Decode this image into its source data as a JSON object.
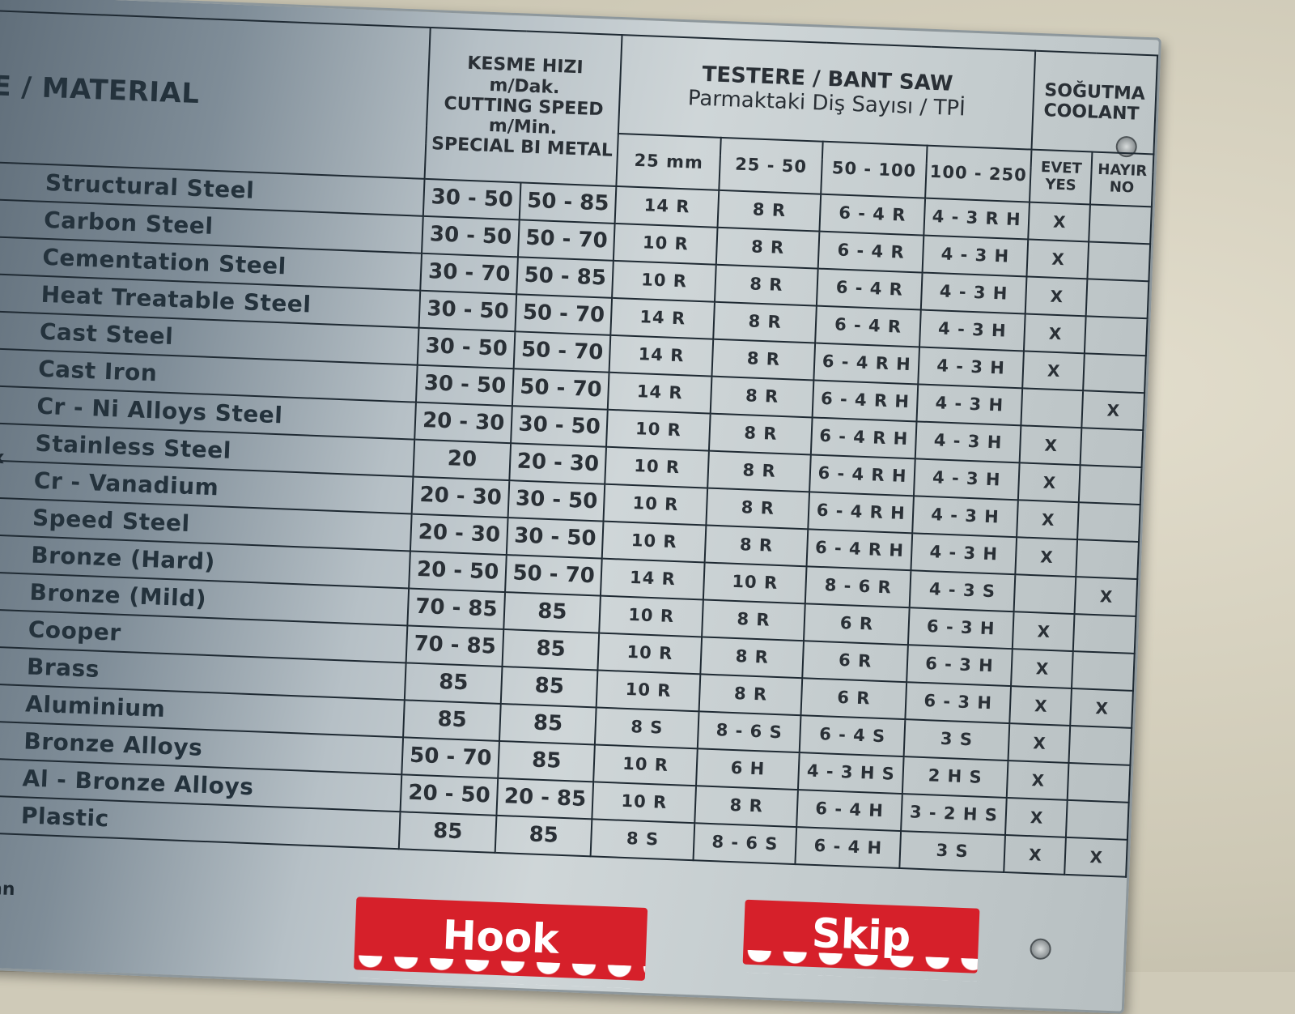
{
  "header": {
    "material": "E / MATERIAL",
    "speed": [
      "KESME HIZI",
      "m/Dak.",
      "CUTTING SPEED",
      "m/Min.",
      "SPECIAL BI METAL"
    ],
    "saw_title": "TESTERE / BANT SAW",
    "saw_subtitle": "Parmaktaki Diş Sayısı / TPİ",
    "tpi_columns": [
      "25 mm",
      "25 - 50",
      "50 - 100",
      "100 - 250"
    ],
    "coolant_title": [
      "SOĞUTMA",
      "COOLANT"
    ],
    "coolant_yes": [
      "EVET",
      "YES"
    ],
    "coolant_no": [
      "HAYIR",
      "NO"
    ]
  },
  "rows": [
    {
      "material": "Structural Steel",
      "speed": [
        "30 - 50",
        "50 - 85"
      ],
      "tpi": [
        "14 R",
        "8 R",
        "6 - 4 R",
        "4 - 3 R H"
      ],
      "yes": "X",
      "no": ""
    },
    {
      "material": "Carbon Steel",
      "speed": [
        "30 - 50",
        "50 - 70"
      ],
      "tpi": [
        "10 R",
        "8 R",
        "6 - 4 R",
        "4 - 3 H"
      ],
      "yes": "X",
      "no": ""
    },
    {
      "material": "Cementation Steel",
      "speed": [
        "30 - 70",
        "50 - 85"
      ],
      "tpi": [
        "10 R",
        "8 R",
        "6 - 4 R",
        "4 - 3 H"
      ],
      "yes": "X",
      "no": ""
    },
    {
      "material": "Heat Treatable Steel",
      "speed": [
        "30 - 50",
        "50 - 70"
      ],
      "tpi": [
        "14 R",
        "8 R",
        "6 - 4 R",
        "4 - 3 H"
      ],
      "yes": "X",
      "no": ""
    },
    {
      "material": "Cast Steel",
      "speed": [
        "30 - 50",
        "50 - 70"
      ],
      "tpi": [
        "14 R",
        "8 R",
        "6 - 4 R H",
        "4 - 3 H"
      ],
      "yes": "X",
      "no": ""
    },
    {
      "material": "Cast Iron",
      "speed": [
        "30 - 50",
        "50 - 70"
      ],
      "tpi": [
        "14 R",
        "8 R",
        "6 - 4 R H",
        "4 - 3 H"
      ],
      "yes": "",
      "no": "X"
    },
    {
      "material": "Cr - Ni Alloys Steel",
      "speed": [
        "20 - 30",
        "30 - 50"
      ],
      "tpi": [
        "10 R",
        "8 R",
        "6 - 4 R H",
        "4 - 3 H"
      ],
      "yes": "X",
      "no": ""
    },
    {
      "material": "Stainless Steel",
      "speed": [
        "20",
        "20 - 30"
      ],
      "tpi": [
        "10 R",
        "8 R",
        "6 - 4 R H",
        "4 - 3 H"
      ],
      "yes": "X",
      "no": ""
    },
    {
      "material": "Cr - Vanadium",
      "speed": [
        "20 - 30",
        "30 - 50"
      ],
      "tpi": [
        "10 R",
        "8 R",
        "6 - 4 R H",
        "4 - 3 H"
      ],
      "yes": "X",
      "no": ""
    },
    {
      "material": "Speed Steel",
      "speed": [
        "20 - 30",
        "30 - 50"
      ],
      "tpi": [
        "10 R",
        "8 R",
        "6 - 4 R H",
        "4 - 3 H"
      ],
      "yes": "X",
      "no": ""
    },
    {
      "material": "Bronze (Hard)",
      "speed": [
        "20 - 50",
        "50 - 70"
      ],
      "tpi": [
        "14 R",
        "10 R",
        "8 - 6 R",
        "4 - 3 S"
      ],
      "yes": "",
      "no": "X"
    },
    {
      "material": "Bronze (Mild)",
      "speed": [
        "70 - 85",
        "85"
      ],
      "tpi": [
        "10 R",
        "8 R",
        "6 R",
        "6 - 3 H"
      ],
      "yes": "X",
      "no": ""
    },
    {
      "material": "Cooper",
      "speed": [
        "70 - 85",
        "85"
      ],
      "tpi": [
        "10 R",
        "8 R",
        "6 R",
        "6 - 3 H"
      ],
      "yes": "X",
      "no": ""
    },
    {
      "material": "Brass",
      "speed": [
        "85",
        "85"
      ],
      "tpi": [
        "10 R",
        "8 R",
        "6 R",
        "6 - 3 H"
      ],
      "yes": "X",
      "no": "X"
    },
    {
      "material": "Aluminium",
      "speed": [
        "85",
        "85"
      ],
      "tpi": [
        "8 S",
        "8 - 6 S",
        "6 - 4 S",
        "3 S"
      ],
      "yes": "X",
      "no": ""
    },
    {
      "material": "Bronze Alloys",
      "speed": [
        "50 - 70",
        "85"
      ],
      "tpi": [
        "10 R",
        "6 H",
        "4 - 3 H S",
        "2 H S"
      ],
      "yes": "X",
      "no": ""
    },
    {
      "material": "Al - Bronze Alloys",
      "speed": [
        "20 - 50",
        "20 - 85"
      ],
      "tpi": [
        "10 R",
        "8 R",
        "6 - 4 H",
        "3 - 2 H S"
      ],
      "yes": "X",
      "no": ""
    },
    {
      "material": "Plastic",
      "speed": [
        "85",
        "85"
      ],
      "tpi": [
        "8 S",
        "8 - 6 S",
        "6 - 4 H",
        "3 S"
      ],
      "yes": "X",
      "no": "X"
    }
  ],
  "left_edge_fragments": [
    "x",
    "lan"
  ],
  "labels": {
    "hook": "Hook",
    "skip": "Skip"
  },
  "colors": {
    "label_red": "#d6202a",
    "plate": "#c4ccce",
    "wall": "#cfcab8",
    "ink": "#1f2a33"
  }
}
